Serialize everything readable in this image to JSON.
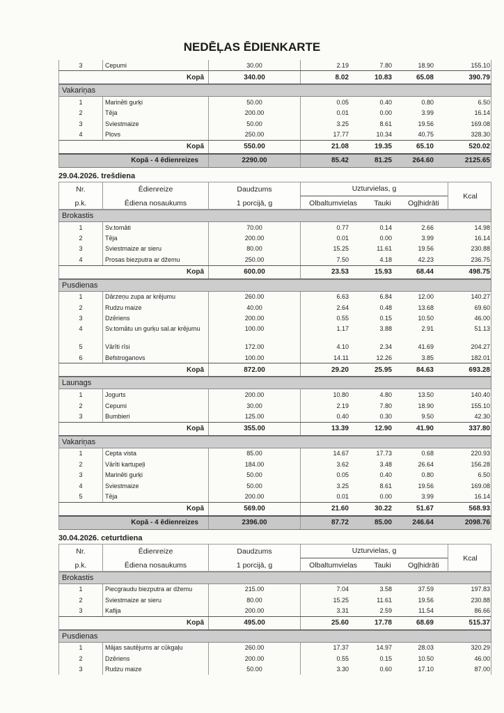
{
  "title": "NEDĒĻAS ĒDIENKARTE",
  "header": {
    "nr": "Nr.",
    "pk": "p.k.",
    "edienreize": "Ēdienreize",
    "nosaukums": "Ēdiena nosaukums",
    "daudzums": "Daudzums",
    "porcija": "1 porcijā, g",
    "uzturvielas": "Uzturvielas, g",
    "olbaltumvielas": "Olbaltumvielas",
    "tauki": "Tauki",
    "oglhidrati": "Ogļhidrāti",
    "kcal": "Kcal"
  },
  "blocks": [
    {
      "day": null,
      "meals": [
        {
          "name": null,
          "items": [
            [
              "3",
              "Cepumi",
              "30.00",
              "2.19",
              "7.80",
              "18.90",
              "155.10"
            ]
          ],
          "total": [
            "Kopā",
            "340.00",
            "8.02",
            "10.83",
            "65.08",
            "390.79"
          ]
        },
        {
          "name": "Vakariņas",
          "items": [
            [
              "1",
              "Marinēti gurķi",
              "50.00",
              "0.05",
              "0.40",
              "0.80",
              "6.50"
            ],
            [
              "2",
              "Tēja",
              "200.00",
              "0.01",
              "0.00",
              "3.99",
              "16.14"
            ],
            [
              "3",
              "Sviestmaize",
              "50.00",
              "3.25",
              "8.61",
              "19.56",
              "169.08"
            ],
            [
              "4",
              "Plovs",
              "250.00",
              "17.77",
              "10.34",
              "40.75",
              "328.30"
            ]
          ],
          "total": [
            "Kopā",
            "550.00",
            "21.08",
            "19.35",
            "65.10",
            "520.02"
          ]
        }
      ],
      "grand": [
        "Kopā - 4 ēdienreizes",
        "2290.00",
        "85.42",
        "81.25",
        "264.60",
        "2125.65"
      ]
    },
    {
      "day": "29.04.2026.  trešdiena",
      "meals": [
        {
          "name": "Brokastis",
          "items": [
            [
              "1",
              "Sv.tomāti",
              "70.00",
              "0.77",
              "0.14",
              "2.66",
              "14.98"
            ],
            [
              "2",
              "Tēja",
              "200.00",
              "0.01",
              "0.00",
              "3.99",
              "16.14"
            ],
            [
              "3",
              "Sviestmaize ar sieru",
              "80.00",
              "15.25",
              "11.61",
              "19.56",
              "230.88"
            ],
            [
              "4",
              "Prosas biezputra ar džemu",
              "250.00",
              "7.50",
              "4.18",
              "42.23",
              "236.75"
            ]
          ],
          "total": [
            "Kopā",
            "600.00",
            "23.53",
            "15.93",
            "68.44",
            "498.75"
          ]
        },
        {
          "name": "Pusdienas",
          "items": [
            [
              "1",
              "Dārzeņu zupa ar krējumu",
              "260.00",
              "6.63",
              "6.84",
              "12.00",
              "140.27"
            ],
            [
              "2",
              "Rudzu maize",
              "40.00",
              "2.64",
              "0.48",
              "13.68",
              "69.60"
            ],
            [
              "3",
              "Dzēriens",
              "200.00",
              "0.55",
              "0.15",
              "10.50",
              "46.00"
            ],
            [
              "4",
              "Sv.tomātu un gurķu sal.ar krējumu",
              "100.00",
              "1.17",
              "3.88",
              "2.91",
              "51.13"
            ],
            [
              "5",
              "Vārīti rīsi",
              "172.00",
              "4.10",
              "2.34",
              "41.69",
              "204.27"
            ],
            [
              "6",
              "Befstroganovs",
              "100.00",
              "14.11",
              "12.26",
              "3.85",
              "182.01"
            ]
          ],
          "total": [
            "Kopā",
            "872.00",
            "29.20",
            "25.95",
            "84.63",
            "693.28"
          ]
        },
        {
          "name": "Launags",
          "items": [
            [
              "1",
              "Jogurts",
              "200.00",
              "10.80",
              "4.80",
              "13.50",
              "140.40"
            ],
            [
              "2",
              "Cepumi",
              "30.00",
              "2.19",
              "7.80",
              "18.90",
              "155.10"
            ],
            [
              "3",
              "Bumbieri",
              "125.00",
              "0.40",
              "0.30",
              "9.50",
              "42.30"
            ]
          ],
          "total": [
            "Kopā",
            "355.00",
            "13.39",
            "12.90",
            "41.90",
            "337.80"
          ]
        },
        {
          "name": "Vakariņas",
          "items": [
            [
              "1",
              "Cepta vista",
              "85.00",
              "14.67",
              "17.73",
              "0.68",
              "220.93"
            ],
            [
              "2",
              "Vārīti kartupeļi",
              "184.00",
              "3.62",
              "3.48",
              "26.64",
              "156.28"
            ],
            [
              "3",
              "Marinēti gurķi",
              "50.00",
              "0.05",
              "0.40",
              "0.80",
              "6.50"
            ],
            [
              "4",
              "Sviestmaize",
              "50.00",
              "3.25",
              "8.61",
              "19.56",
              "169.08"
            ],
            [
              "5",
              "Tēja",
              "200.00",
              "0.01",
              "0.00",
              "3.99",
              "16.14"
            ]
          ],
          "total": [
            "Kopā",
            "569.00",
            "21.60",
            "30.22",
            "51.67",
            "568.93"
          ]
        }
      ],
      "grand": [
        "Kopā - 4 ēdienreizes",
        "2396.00",
        "87.72",
        "85.00",
        "246.64",
        "2098.76"
      ]
    },
    {
      "day": "30.04.2026.  ceturtdiena",
      "meals": [
        {
          "name": "Brokastis",
          "items": [
            [
              "1",
              "Piecgraudu biezputra ar džemu",
              "215.00",
              "7.04",
              "3.58",
              "37.59",
              "197.83"
            ],
            [
              "2",
              "Sviestmaize ar sieru",
              "80.00",
              "15.25",
              "11.61",
              "19.56",
              "230.88"
            ],
            [
              "3",
              "Kafija",
              "200.00",
              "3.31",
              "2.59",
              "11.54",
              "86.66"
            ]
          ],
          "total": [
            "Kopā",
            "495.00",
            "25.60",
            "17.78",
            "68.69",
            "515.37"
          ]
        },
        {
          "name": "Pusdienas",
          "items": [
            [
              "1",
              "Mājas sautējums ar cūkgaļu",
              "260.00",
              "17.37",
              "14.97",
              "28.03",
              "320.29"
            ],
            [
              "2",
              "Dzēriens",
              "200.00",
              "0.55",
              "0.15",
              "10.50",
              "46.00"
            ],
            [
              "3",
              "Rudzu maize",
              "50.00",
              "3.30",
              "0.60",
              "17.10",
              "87.00"
            ]
          ],
          "total": null
        }
      ],
      "grand": null
    }
  ]
}
